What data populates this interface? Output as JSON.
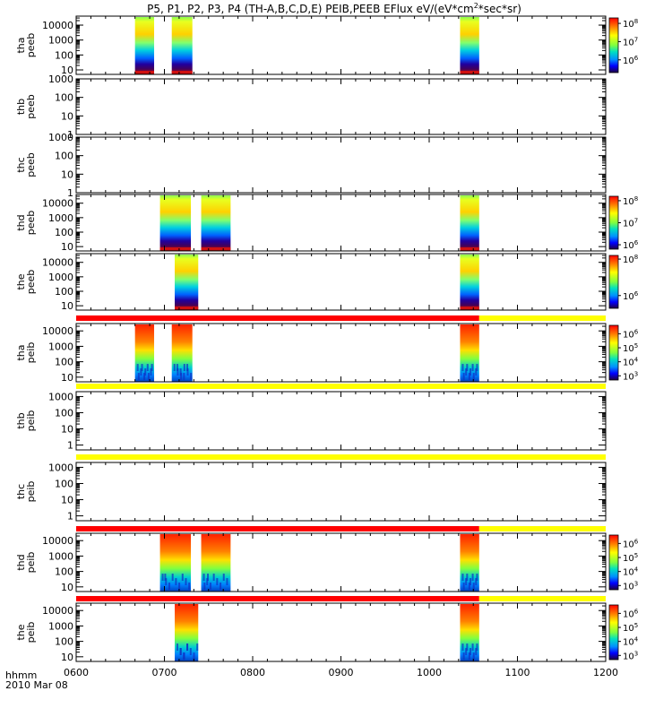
{
  "chart_data": {
    "type": "heatmap",
    "title": "P5, P1, P2, P3, P4 (TH-A,B,C,D,E) PEIB,PEEB EFlux eV/(eV*cm",
    "title_sup": "2",
    "title_end": "*sec*sr)",
    "x_axis": {
      "unit_label": "hhmm",
      "date_label": "2010 Mar 08",
      "ticks": [
        "0600",
        "0700",
        "0800",
        "0900",
        "1000",
        "1100",
        "1200"
      ],
      "range_hours": [
        6,
        12
      ]
    },
    "y_scale": "log",
    "y_tick_labels": [
      "1",
      "10",
      "100",
      "1000",
      "10000"
    ],
    "panels": [
      {
        "probe": "tha",
        "instrument": "peeb",
        "yrange": [
          5,
          40000
        ],
        "ticks": [
          10,
          100,
          1000,
          10000
        ],
        "data_intervals": [
          [
            "06:40",
            "06:53"
          ],
          [
            "07:05",
            "07:19"
          ],
          [
            "10:21",
            "10:34"
          ]
        ],
        "colorbar": {
          "ticks": [
            6,
            7,
            8
          ],
          "range_exp": [
            5.3,
            8.3
          ]
        }
      },
      {
        "probe": "thb",
        "instrument": "peeb",
        "yrange": [
          1,
          1000
        ],
        "ticks": [
          1,
          10,
          100,
          1000
        ],
        "data_intervals": []
      },
      {
        "probe": "thc",
        "instrument": "peeb",
        "yrange": [
          1,
          1000
        ],
        "ticks": [
          1,
          10,
          100,
          1000
        ],
        "data_intervals": []
      },
      {
        "probe": "thd",
        "instrument": "peeb",
        "yrange": [
          5,
          40000
        ],
        "ticks": [
          10,
          100,
          1000,
          10000
        ],
        "data_intervals": [
          [
            "06:57",
            "07:18"
          ],
          [
            "07:25",
            "07:45"
          ],
          [
            "10:21",
            "10:34"
          ]
        ],
        "colorbar": {
          "ticks": [
            6,
            7,
            8
          ],
          "range_exp": [
            5.8,
            8.2
          ]
        }
      },
      {
        "probe": "the",
        "instrument": "peeb",
        "yrange": [
          5,
          40000
        ],
        "ticks": [
          10,
          100,
          1000,
          10000
        ],
        "data_intervals": [
          [
            "07:07",
            "07:23"
          ],
          [
            "10:21",
            "10:34"
          ]
        ],
        "colorbar": {
          "ticks": [
            6,
            8
          ],
          "range_exp": [
            5.3,
            8.2
          ]
        }
      },
      {
        "probe": "tha",
        "instrument": "peib",
        "yrange": [
          5,
          30000
        ],
        "ticks": [
          10,
          100,
          1000,
          10000
        ],
        "data_intervals": [
          [
            "06:40",
            "06:53"
          ],
          [
            "07:05",
            "07:19"
          ],
          [
            "10:21",
            "10:34"
          ]
        ],
        "colorbar": {
          "ticks": [
            3,
            4,
            5,
            6
          ],
          "range_exp": [
            2.7,
            6.6
          ]
        }
      },
      {
        "probe": "thb",
        "instrument": "peib",
        "yrange": [
          0.5,
          2000
        ],
        "ticks": [
          1,
          10,
          100,
          1000
        ],
        "data_intervals": []
      },
      {
        "probe": "thc",
        "instrument": "peib",
        "yrange": [
          0.5,
          2000
        ],
        "ticks": [
          1,
          10,
          100,
          1000
        ],
        "data_intervals": []
      },
      {
        "probe": "thd",
        "instrument": "peib",
        "yrange": [
          5,
          30000
        ],
        "ticks": [
          10,
          100,
          1000,
          10000
        ],
        "data_intervals": [
          [
            "06:57",
            "07:18"
          ],
          [
            "07:25",
            "07:45"
          ],
          [
            "10:21",
            "10:34"
          ]
        ],
        "colorbar": {
          "ticks": [
            3,
            4,
            5,
            6
          ],
          "range_exp": [
            2.7,
            6.6
          ]
        }
      },
      {
        "probe": "the",
        "instrument": "peib",
        "yrange": [
          5,
          30000
        ],
        "ticks": [
          10,
          100,
          1000,
          10000
        ],
        "data_intervals": [
          [
            "07:07",
            "07:23"
          ],
          [
            "10:21",
            "10:34"
          ]
        ],
        "colorbar": {
          "ticks": [
            3,
            4,
            5,
            6
          ],
          "range_exp": [
            2.7,
            6.6
          ]
        }
      }
    ],
    "mode_bars": [
      {
        "above_panel": 5,
        "segments": [
          {
            "from": "06:00",
            "to": "10:34",
            "color": "#ff0000"
          },
          {
            "from": "10:34",
            "to": "12:00",
            "color": "#ffff00"
          }
        ]
      },
      {
        "above_panel": 6,
        "segments": [
          {
            "from": "06:00",
            "to": "12:00",
            "color": "#ffff00"
          }
        ]
      },
      {
        "above_panel": 7,
        "segments": [
          {
            "from": "06:00",
            "to": "12:00",
            "color": "#ffff00"
          }
        ]
      },
      {
        "above_panel": 8,
        "segments": [
          {
            "from": "06:00",
            "to": "10:34",
            "color": "#ff0000"
          },
          {
            "from": "10:34",
            "to": "12:00",
            "color": "#ffff00"
          }
        ]
      },
      {
        "above_panel": 9,
        "segments": [
          {
            "from": "06:00",
            "to": "10:34",
            "color": "#ff0000"
          },
          {
            "from": "10:34",
            "to": "12:00",
            "color": "#ffff00"
          }
        ]
      }
    ]
  }
}
